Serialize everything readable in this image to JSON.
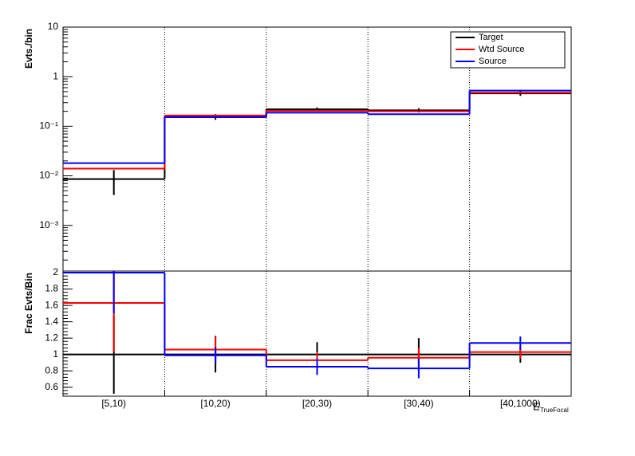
{
  "chart_data": [
    {
      "type": "step",
      "y_label": "Evts./bin",
      "log_y": true,
      "ylim": [
        0.00012,
        10
      ],
      "yticks": [
        {
          "value": 0.001,
          "label": "10⁻³"
        },
        {
          "value": 0.01,
          "label": "10⁻²"
        },
        {
          "value": 0.1,
          "label": "10⁻¹"
        },
        1,
        10
      ],
      "legend": "top-right",
      "grid": true,
      "series": [
        {
          "name": "Target",
          "color": "#000000",
          "values": [
            0.0086,
            0.155,
            0.22,
            0.21,
            0.46
          ],
          "errors": [
            0.0045,
            0.02,
            0.02,
            0.02,
            0.05
          ]
        },
        {
          "name": "Wtd Source",
          "color": "#ff0000",
          "values": [
            0.014,
            0.165,
            0.205,
            0.2,
            0.475
          ]
        },
        {
          "name": "Source",
          "color": "#0000ff",
          "values": [
            0.018,
            0.152,
            0.188,
            0.175,
            0.525
          ]
        }
      ]
    },
    {
      "type": "step",
      "y_label": "Frac Evts/Bin",
      "x_label": "E",
      "x_label_sub": "TrueFocal",
      "categories": [
        "[5,10)",
        "[10,20)",
        "[20,30)",
        "[30,40)",
        "[40,1000)"
      ],
      "ylim": [
        0.49,
        2.02
      ],
      "yticks": [
        0.6,
        0.8,
        1,
        1.2,
        1.4,
        1.6,
        1.8,
        2
      ],
      "grid": true,
      "series": [
        {
          "name": "Target",
          "color": "#000000",
          "values": [
            1,
            1,
            1,
            1,
            1
          ],
          "errors": [
            0.48,
            0.22,
            0.15,
            0.2,
            0.1
          ]
        },
        {
          "name": "Wtd Source",
          "color": "#ff0000",
          "values": [
            1.63,
            1.06,
            0.93,
            0.96,
            1.03
          ],
          "errors": [
            0.6,
            0.17,
            0.1,
            0.12,
            0.08
          ]
        },
        {
          "name": "Source",
          "color": "#0000ff",
          "values": [
            2,
            0.99,
            0.85,
            0.83,
            1.14
          ],
          "errors": [
            0.5,
            0.1,
            0.1,
            0.12,
            0.08
          ]
        }
      ]
    }
  ]
}
